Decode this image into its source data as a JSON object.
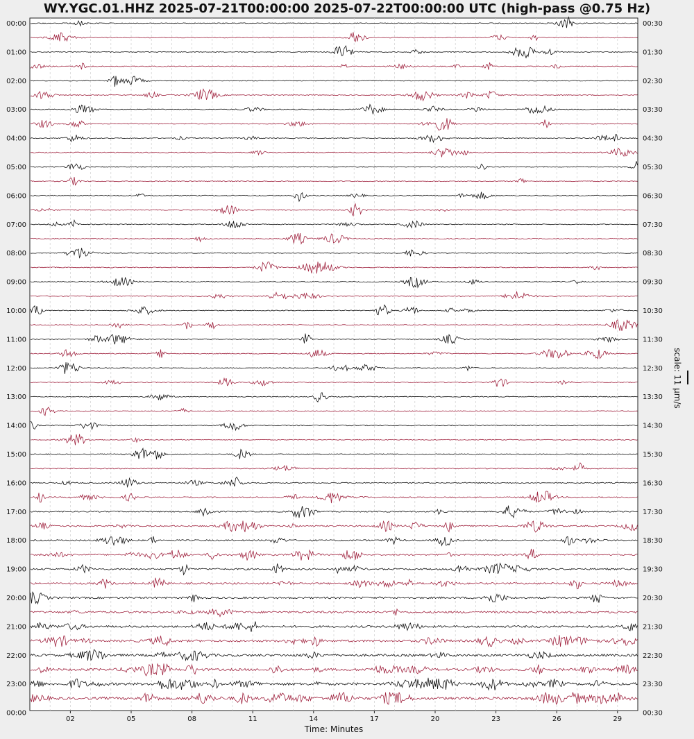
{
  "chart_data": {
    "type": "line",
    "title": "WY.YGC.01.HHZ 2025-07-21T00:00:00 2025-07-22T00:00:00 UTC (high-pass @0.75 Hz)",
    "xlabel": "Time: Minutes",
    "x_ticks": [
      "02",
      "05",
      "08",
      "11",
      "14",
      "17",
      "20",
      "23",
      "26",
      "29"
    ],
    "x_tick_values": [
      2,
      5,
      8,
      11,
      14,
      17,
      20,
      23,
      26,
      29
    ],
    "xlim": [
      0,
      30
    ],
    "left_labels": [
      "00:00",
      "01:00",
      "02:00",
      "03:00",
      "04:00",
      "05:00",
      "06:00",
      "07:00",
      "08:00",
      "09:00",
      "10:00",
      "11:00",
      "12:00",
      "13:00",
      "14:00",
      "15:00",
      "16:00",
      "17:00",
      "18:00",
      "19:00",
      "20:00",
      "21:00",
      "22:00",
      "23:00",
      "00:00"
    ],
    "right_labels": [
      "00:30",
      "01:30",
      "02:30",
      "03:30",
      "04:30",
      "05:30",
      "06:30",
      "07:30",
      "08:30",
      "09:30",
      "10:30",
      "11:30",
      "12:30",
      "13:30",
      "14:30",
      "15:30",
      "16:30",
      "17:30",
      "18:30",
      "19:30",
      "20:30",
      "21:30",
      "22:30",
      "23:30",
      "00:30"
    ],
    "trace_count": 48,
    "trace_colors": [
      "#111111",
      "#a0233f"
    ],
    "scale_label": "scale: 11 µm/s",
    "grid": "vertical dashed"
  }
}
